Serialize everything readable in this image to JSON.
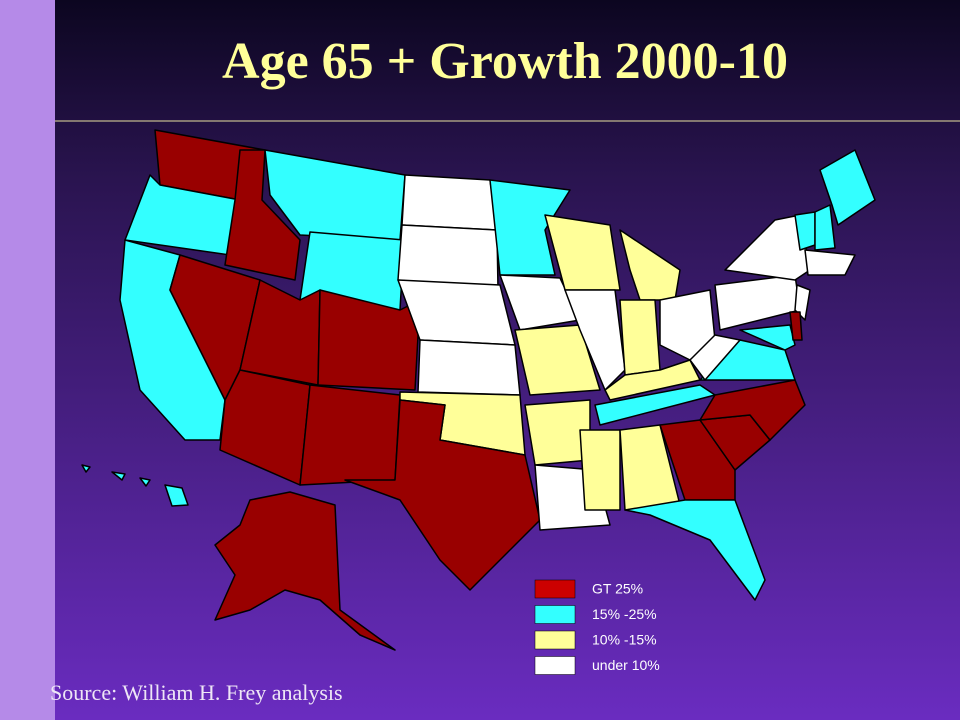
{
  "title": "Age 65 + Growth 2000-10",
  "legend": [
    {
      "label": "GT 25%",
      "color": "#cc0000"
    },
    {
      "label": "15% -25%",
      "color": "#33ffff"
    },
    {
      "label": "10% -15%",
      "color": "#ffff99"
    },
    {
      "label": "under 10%",
      "color": "#ffffff"
    }
  ],
  "source": "Source: William H. Frey analysis"
}
